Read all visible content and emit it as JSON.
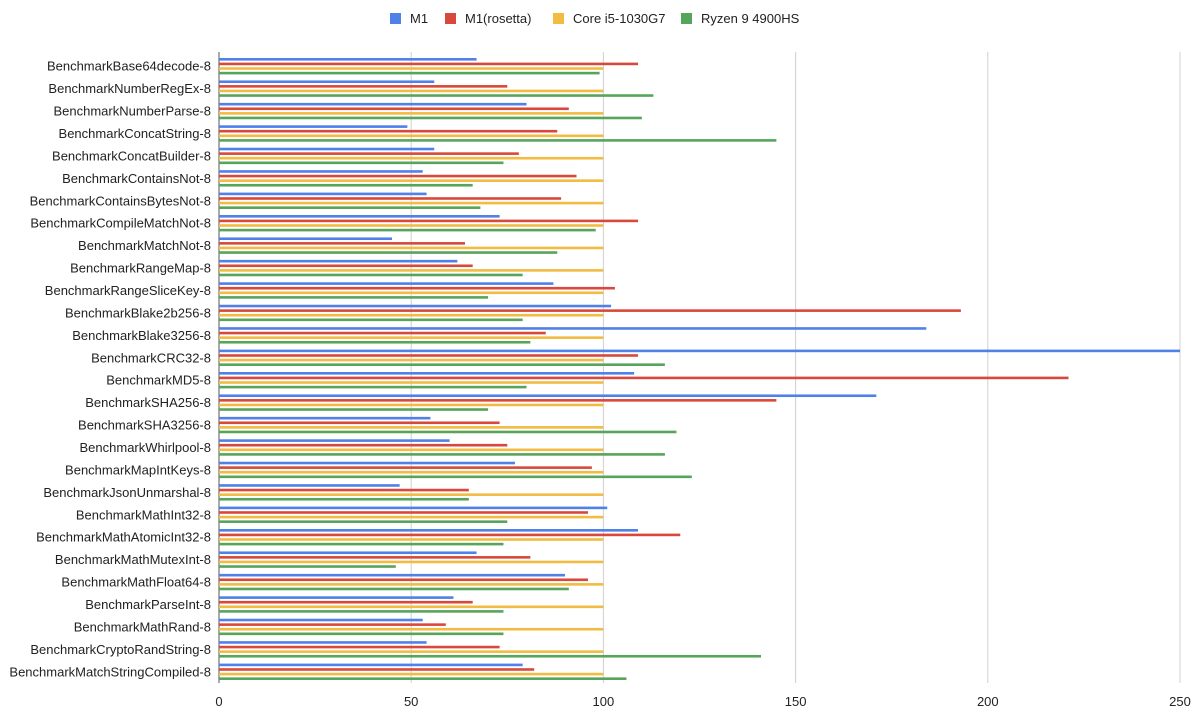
{
  "chart_data": {
    "type": "bar",
    "orientation": "horizontal",
    "xlim": [
      0,
      250
    ],
    "xticks": [
      "0",
      "50",
      "100",
      "150",
      "200",
      "250"
    ],
    "grid": true,
    "legend_position": "top",
    "categories": [
      "BenchmarkBase64decode-8",
      "BenchmarkNumberRegEx-8",
      "BenchmarkNumberParse-8",
      "BenchmarkConcatString-8",
      "BenchmarkConcatBuilder-8",
      "BenchmarkContainsNot-8",
      "BenchmarkContainsBytesNot-8",
      "BenchmarkCompileMatchNot-8",
      "BenchmarkMatchNot-8",
      "BenchmarkRangeMap-8",
      "BenchmarkRangeSliceKey-8",
      "BenchmarkBlake2b256-8",
      "BenchmarkBlake3256-8",
      "BenchmarkCRC32-8",
      "BenchmarkMD5-8",
      "BenchmarkSHA256-8",
      "BenchmarkSHA3256-8",
      "BenchmarkWhirlpool-8",
      "BenchmarkMapIntKeys-8",
      "BenchmarkJsonUnmarshal-8",
      "BenchmarkMathInt32-8",
      "BenchmarkMathAtomicInt32-8",
      "BenchmarkMathMutexInt-8",
      "BenchmarkMathFloat64-8",
      "BenchmarkParseInt-8",
      "BenchmarkMathRand-8",
      "BenchmarkCryptoRandString-8",
      "BenchmarkMatchStringCompiled-8"
    ],
    "series": [
      {
        "name": "M1",
        "color": "#4f81e8",
        "values": [
          67,
          56,
          80,
          49,
          56,
          53,
          54,
          73,
          45,
          62,
          87,
          102,
          184,
          250,
          108,
          171,
          55,
          60,
          77,
          47,
          101,
          109,
          67,
          90,
          61,
          53,
          54,
          79
        ]
      },
      {
        "name": "M1(rosetta)",
        "color": "#d9493b",
        "values": [
          109,
          75,
          91,
          88,
          78,
          93,
          89,
          109,
          64,
          66,
          103,
          193,
          85,
          109,
          221,
          145,
          73,
          75,
          97,
          65,
          96,
          120,
          81,
          96,
          66,
          59,
          73,
          82
        ]
      },
      {
        "name": "Core i5-1030G7",
        "color": "#f2bc42",
        "values": [
          100,
          100,
          100,
          100,
          100,
          100,
          100,
          100,
          100,
          100,
          100,
          100,
          100,
          100,
          100,
          100,
          100,
          100,
          100,
          100,
          100,
          100,
          100,
          100,
          100,
          100,
          100,
          100
        ]
      },
      {
        "name": "Ryzen 9 4900HS",
        "color": "#57a55a",
        "values": [
          99,
          113,
          110,
          145,
          74,
          66,
          68,
          98,
          88,
          79,
          70,
          79,
          81,
          116,
          80,
          70,
          119,
          116,
          123,
          65,
          75,
          74,
          46,
          91,
          74,
          74,
          141,
          106
        ]
      }
    ]
  }
}
